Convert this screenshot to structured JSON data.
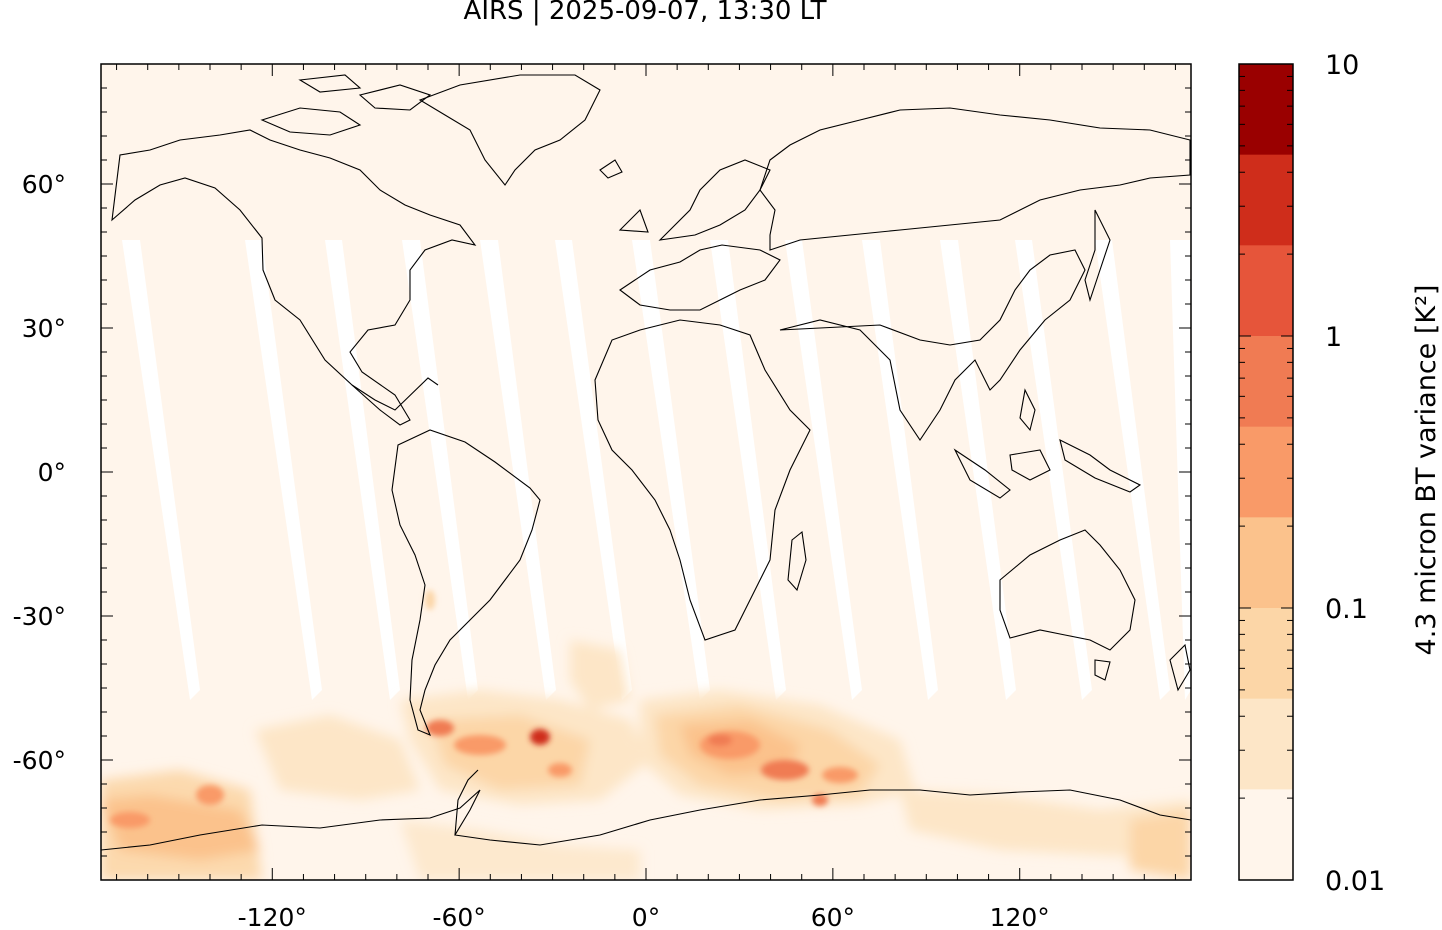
{
  "title": "AIRS | 2025-09-07, 13:30 LT",
  "map": {
    "x_ticks": [
      "-120°",
      "-60°",
      "0°",
      "60°",
      "120°"
    ],
    "y_ticks": [
      "60°",
      "30°",
      "0°",
      "-30°",
      "-60°"
    ],
    "lon_range": [
      -175,
      175
    ],
    "lat_range": [
      -85,
      85
    ],
    "background_color": "#fff5eb",
    "swath_gap_color": "#ffffff"
  },
  "colorbar": {
    "label": "4.3 micron BT variance [K²]",
    "tick_labels": [
      "10",
      "1",
      "0.1",
      "0.01"
    ],
    "colors": [
      "#9a0000",
      "#cf2d1b",
      "#e6553a",
      "#f07b53",
      "#f99a68",
      "#fbc28c",
      "#fcd6a7",
      "#fde6c7",
      "#fff5eb"
    ]
  }
}
